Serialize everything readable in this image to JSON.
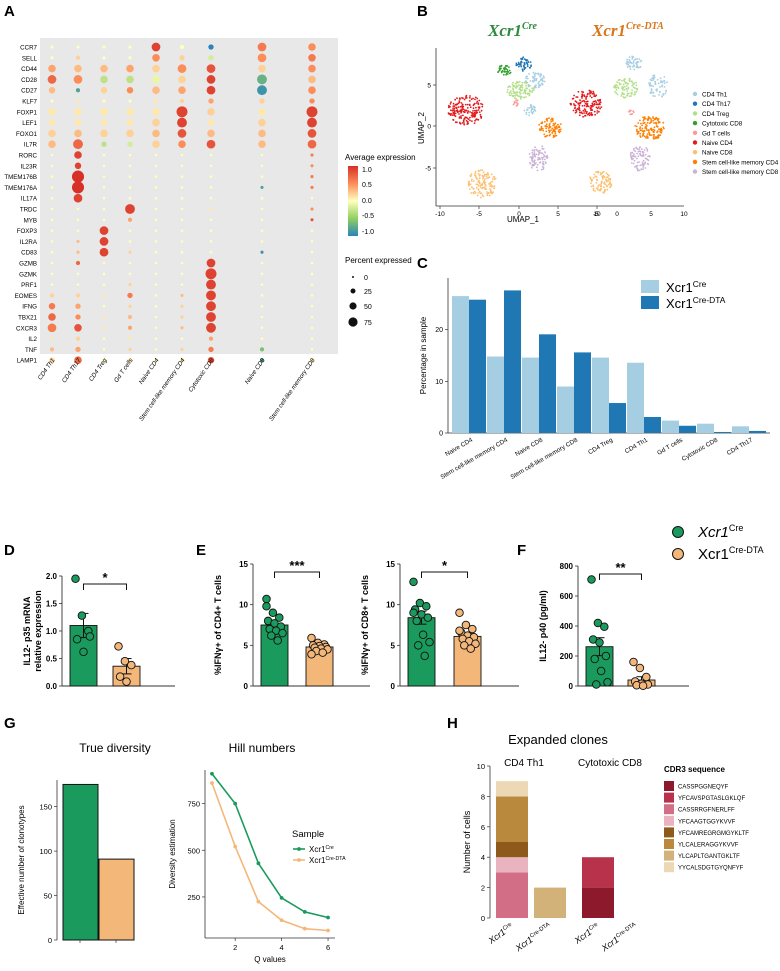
{
  "colors": {
    "green": "#1a9a5c",
    "orange": "#f4b77a",
    "lightblue": "#a6cee3",
    "darkblue": "#1f78b4",
    "dot_bg": "#e8e8e8"
  },
  "panels": {
    "A": "A",
    "B": "B",
    "C": "C",
    "D": "D",
    "E": "E",
    "F": "F",
    "G": "G",
    "H": "H"
  },
  "panel_a": {
    "genes": [
      "CCR7",
      "SELL",
      "CD44",
      "CD28",
      "CD27",
      "KLF7",
      "FOXP1",
      "LEF1",
      "FOXO1",
      "IL7R",
      "RORC",
      "IL23R",
      "TMEM176B",
      "TMEM176A",
      "IL17A",
      "TRDC",
      "MYB",
      "FOXP3",
      "IL2RA",
      "CD83",
      "GZMB",
      "GZMK",
      "PRF1",
      "EOMES",
      "IFNG",
      "TBX21",
      "CXCR3",
      "IL2",
      "TNF",
      "LAMP1"
    ],
    "clusters": [
      "CD4 Th1",
      "CD4 Th17",
      "CD4 Treg",
      "Gd T cells",
      "Naive CD4",
      "Stem cell-like memory CD4",
      "Cytotoxic CD8",
      "Naive CD8",
      "Stem cell-like memory CD8"
    ],
    "legend_expr_title": "Average expression",
    "legend_expr_ticks": [
      "1.0",
      "0.5",
      "0.0",
      "-0.5",
      "-1.0"
    ],
    "legend_pct_title": "Percent expressed",
    "legend_pct_ticks": [
      "0",
      "25",
      "50",
      "75"
    ]
  },
  "panel_b": {
    "title_left_base": "Xcr1",
    "title_left_sup": "Cre",
    "title_right_base": "Xcr1",
    "title_right_sup": "Cre-DTA",
    "xlabel": "UMAP_1",
    "ylabel": "UMAP_2",
    "xticks_left": [
      "-10",
      "-5",
      "0",
      "5",
      "10"
    ],
    "xticks_right": [
      "-5",
      "0",
      "5",
      "10"
    ],
    "yticks": [
      "5",
      "0",
      "-5"
    ],
    "legend": [
      {
        "label": "CD4 Th1",
        "color": "#a6cee3"
      },
      {
        "label": "CD4 Th17",
        "color": "#1f78b4"
      },
      {
        "label": "CD4 Treg",
        "color": "#b2df8a"
      },
      {
        "label": "Cytotoxic CD8",
        "color": "#33a02c"
      },
      {
        "label": "Gd T cells",
        "color": "#fb9a99"
      },
      {
        "label": "Naive CD4",
        "color": "#e31a1c"
      },
      {
        "label": "Naive CD8",
        "color": "#fdbf6f"
      },
      {
        "label": "Stem cell-like memory CD4",
        "color": "#ff7f00"
      },
      {
        "label": "Stem cell-like memory CD8",
        "color": "#cab2d6"
      }
    ]
  },
  "chart_data": [
    {
      "panel": "C",
      "type": "bar",
      "ylabel": "Percentage in sample",
      "ylim": [
        0,
        30
      ],
      "yticks": [
        "0",
        "10",
        "20"
      ],
      "categories": [
        "Naive CD4",
        "Stem cell-like memory CD4",
        "Naive CD8",
        "Stem cell-like memory CD8",
        "CD4 Treg",
        "CD4 Th1",
        "Gd T cells",
        "Cytotoxic CD8",
        "CD4 Th17"
      ],
      "series": [
        {
          "name": "Xcr1Cre",
          "legend_base": "Xcr1",
          "legend_sup": "Cre",
          "values": [
            26.5,
            14.8,
            14.6,
            9.0,
            14.6,
            13.6,
            2.4,
            1.8,
            1.3
          ]
        },
        {
          "name": "Xcr1Cre-DTA",
          "legend_base": "Xcr1",
          "legend_sup": "Cre-DTA",
          "values": [
            25.8,
            27.6,
            19.1,
            15.6,
            5.8,
            3.1,
            1.4,
            0.2,
            0.4
          ]
        }
      ]
    },
    {
      "panel": "D",
      "type": "bar",
      "ylabel_line1": "IL12- p35 mRNA",
      "ylabel_line2": "relative expression",
      "ylim": [
        0,
        2.0
      ],
      "yticks": [
        "0.0",
        "0.5",
        "1.0",
        "1.5",
        "2.0"
      ],
      "significance": "*",
      "series": [
        {
          "name": "Xcr1Cre",
          "mean": 1.1,
          "sem": 0.22,
          "points": [
            1.95,
            1.28,
            1.0,
            0.85,
            0.62,
            0.9
          ]
        },
        {
          "name": "Xcr1Cre-DTA",
          "mean": 0.36,
          "sem": 0.14,
          "points": [
            0.72,
            0.45,
            0.38,
            0.17,
            0.08
          ]
        }
      ]
    },
    {
      "panel": "E-left",
      "type": "bar",
      "ylabel": "%IFNγ+ of CD4+ T cells",
      "ylim": [
        0,
        15
      ],
      "yticks": [
        "0",
        "5",
        "10",
        "15"
      ],
      "significance": "***",
      "series": [
        {
          "name": "Xcr1Cre",
          "mean": 7.5,
          "sem": 0.6,
          "points": [
            10.7,
            9.0,
            8.4,
            8.0,
            7.7,
            7.3,
            7.0,
            6.8,
            6.5,
            6.2,
            5.6,
            9.8
          ]
        },
        {
          "name": "Xcr1Cre-DTA",
          "mean": 4.8,
          "sem": 0.25,
          "points": [
            5.9,
            5.3,
            5.1,
            5.0,
            4.9,
            4.8,
            4.7,
            4.6,
            4.5,
            4.3,
            4.1,
            3.9
          ]
        }
      ]
    },
    {
      "panel": "E-right",
      "type": "bar",
      "ylabel": "%IFNγ+ of CD8+ T cells",
      "ylim": [
        0,
        15
      ],
      "yticks": [
        "0",
        "5",
        "10",
        "15"
      ],
      "significance": "*",
      "series": [
        {
          "name": "Xcr1Cre",
          "mean": 8.4,
          "sem": 0.8,
          "points": [
            12.8,
            10.2,
            9.8,
            9.4,
            8.8,
            8.4,
            8.0,
            6.3,
            5.4,
            5.0,
            3.7,
            9.0
          ]
        },
        {
          "name": "Xcr1Cre-DTA",
          "mean": 6.1,
          "sem": 0.4,
          "points": [
            9.0,
            7.5,
            7.0,
            6.6,
            6.2,
            6.0,
            5.8,
            5.5,
            5.2,
            5.0,
            4.6,
            6.8
          ]
        }
      ]
    },
    {
      "panel": "F",
      "type": "bar",
      "ylabel": "IL12- p40 (pg/ml)",
      "ylim": [
        0,
        800
      ],
      "yticks": [
        "0",
        "200",
        "400",
        "600",
        "800"
      ],
      "significance": "**",
      "series": [
        {
          "name": "Xcr1Cre",
          "mean": 262,
          "sem": 60,
          "points": [
            710,
            420,
            395,
            310,
            290,
            200,
            180,
            100,
            25,
            10
          ]
        },
        {
          "name": "Xcr1Cre-DTA",
          "mean": 40,
          "sem": 22,
          "points": [
            160,
            120,
            60,
            30,
            15,
            10,
            5,
            2
          ]
        }
      ]
    },
    {
      "panel": "G-left",
      "type": "bar",
      "title": "True diversity",
      "ylabel": "Effective number of clonotypes",
      "ylim": [
        0,
        175
      ],
      "yticks": [
        "0",
        "50",
        "100",
        "150"
      ],
      "categories": [
        "Xcr1Cre",
        "Xcr1Cre-DTA"
      ],
      "values": [
        175,
        91
      ]
    },
    {
      "panel": "G-right",
      "type": "line",
      "title": "Hill numbers",
      "xlabel": "Q values",
      "ylabel": "Diversity estimation",
      "xlim": [
        0.7,
        6.3
      ],
      "ylim": [
        30,
        930
      ],
      "xticks": [
        "2",
        "4",
        "6"
      ],
      "yticks": [
        "250",
        "500",
        "750"
      ],
      "legend_title": "Sample",
      "series": [
        {
          "name": "Xcr1Cre",
          "legend_base": "Xcr1",
          "legend_sup": "Cre",
          "x": [
            1,
            2,
            3,
            4,
            5,
            6
          ],
          "y": [
            910,
            750,
            430,
            245,
            170,
            140
          ]
        },
        {
          "name": "Xcr1Cre-DTA",
          "legend_base": "Xcr1",
          "legend_sup": "Cre-DTA",
          "x": [
            1,
            2,
            3,
            4,
            5,
            6
          ],
          "y": [
            860,
            520,
            225,
            125,
            80,
            70
          ]
        }
      ]
    },
    {
      "panel": "H",
      "type": "bar",
      "title": "Expanded clones",
      "facets": [
        "CD4 Th1",
        "Cytotoxic CD8"
      ],
      "ylabel": "Number of cells",
      "ylim": [
        0,
        10
      ],
      "yticks": [
        "0",
        "2",
        "4",
        "6",
        "8",
        "10"
      ],
      "xtick_base": "Xcr1",
      "xtick_sups": [
        "Cre",
        "Cre-DTA"
      ],
      "legend_title": "CDR3 sequence",
      "sequences": [
        {
          "label": "CASSPGGNEQYF",
          "color": "#8c1a2c"
        },
        {
          "label": "YFCAVSPGTASLGKLQF",
          "color": "#b8324c"
        },
        {
          "label": "CASSRRGFNERLFF",
          "color": "#d26f86"
        },
        {
          "label": "YFCAAGTGGYKVVF",
          "color": "#eab3c0"
        },
        {
          "label": "YFCAMREGRGMGYKLTF",
          "color": "#8d5a1c"
        },
        {
          "label": "YLCALERAGGYKVVF",
          "color": "#b98a3d"
        },
        {
          "label": "YLCAPLTGANTGKLTF",
          "color": "#d3b27a"
        },
        {
          "label": "YYCALSDGTGYQNFYF",
          "color": "#ecd8b4"
        }
      ],
      "stacks": [
        {
          "facet": 0,
          "group": 0,
          "segments": [
            {
              "seq": 2,
              "v": 3
            },
            {
              "seq": 3,
              "v": 1
            },
            {
              "seq": 4,
              "v": 1
            },
            {
              "seq": 5,
              "v": 3
            },
            {
              "seq": 7,
              "v": 1
            }
          ]
        },
        {
          "facet": 0,
          "group": 1,
          "segments": [
            {
              "seq": 6,
              "v": 2
            }
          ]
        },
        {
          "facet": 1,
          "group": 0,
          "segments": [
            {
              "seq": 0,
              "v": 2
            },
            {
              "seq": 1,
              "v": 2
            }
          ]
        },
        {
          "facet": 1,
          "group": 1,
          "segments": []
        }
      ]
    }
  ],
  "legend_def": {
    "items": [
      {
        "base": "Xcr1",
        "sup": "Cre",
        "italic": true
      },
      {
        "base": "Xcr1",
        "sup": "Cre-DTA",
        "italic": false
      }
    ]
  }
}
